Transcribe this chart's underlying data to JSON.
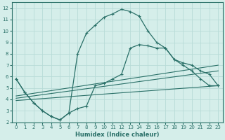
{
  "xlabel": "Humidex (Indice chaleur)",
  "xlim": [
    -0.5,
    23.5
  ],
  "ylim": [
    2,
    12.5
  ],
  "xticks": [
    0,
    1,
    2,
    3,
    4,
    5,
    6,
    7,
    8,
    9,
    10,
    11,
    12,
    13,
    14,
    15,
    16,
    17,
    18,
    19,
    20,
    21,
    22,
    23
  ],
  "yticks": [
    2,
    3,
    4,
    5,
    6,
    7,
    8,
    9,
    10,
    11,
    12
  ],
  "bg_color": "#d5eeea",
  "grid_color": "#b8dbd7",
  "line_color": "#2a7068",
  "line1_x": [
    0,
    1,
    2,
    3,
    4,
    5,
    6,
    7,
    8,
    9,
    10,
    11,
    12,
    13,
    14,
    15,
    16,
    17,
    18,
    19,
    20,
    21,
    22,
    23
  ],
  "line1_y": [
    5.8,
    4.6,
    3.7,
    3.0,
    2.5,
    2.2,
    2.8,
    3.2,
    3.4,
    5.2,
    5.4,
    5.8,
    6.2,
    8.5,
    8.8,
    8.7,
    8.5,
    8.5,
    7.5,
    7.2,
    7.0,
    6.5,
    6.2,
    5.2
  ],
  "line2_x": [
    0,
    1,
    2,
    3,
    4,
    5,
    6,
    7,
    8,
    9,
    10,
    11,
    12,
    13,
    14,
    15,
    16,
    17,
    18,
    19,
    20,
    21,
    22,
    23
  ],
  "line2_y": [
    5.8,
    4.6,
    3.7,
    3.0,
    2.5,
    2.2,
    2.8,
    8.0,
    9.8,
    10.5,
    11.2,
    11.5,
    11.9,
    11.7,
    11.3,
    10.0,
    9.0,
    8.5,
    7.5,
    7.0,
    6.5,
    5.8,
    5.2,
    5.2
  ],
  "line3_x": [
    0,
    23
  ],
  "line3_y": [
    4.3,
    7.0
  ],
  "line4_x": [
    0,
    23
  ],
  "line4_y": [
    4.1,
    6.5
  ],
  "line5_x": [
    0,
    23
  ],
  "line5_y": [
    3.9,
    5.2
  ],
  "marker": "+"
}
